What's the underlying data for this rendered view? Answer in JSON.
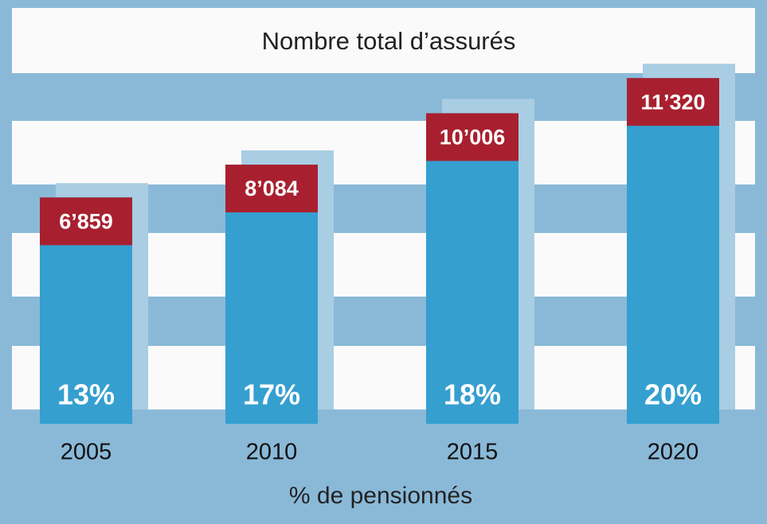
{
  "chart_data": {
    "type": "bar",
    "categories": [
      "2005",
      "2010",
      "2015",
      "2020"
    ],
    "series": [
      {
        "name": "Nombre total d’assurés",
        "color": "#a8202f",
        "values": [
          6859,
          8084,
          10006,
          11320
        ],
        "value_labels": [
          "6’859",
          "8’084",
          "10’006",
          "11’320"
        ]
      },
      {
        "name": "% de pensionnés",
        "color": "#359fd0",
        "values": [
          13,
          17,
          18,
          20
        ],
        "value_labels": [
          "13%",
          "17%",
          "18%",
          "20%"
        ]
      }
    ],
    "ylim": [
      -1600,
      14000
    ]
  }
}
